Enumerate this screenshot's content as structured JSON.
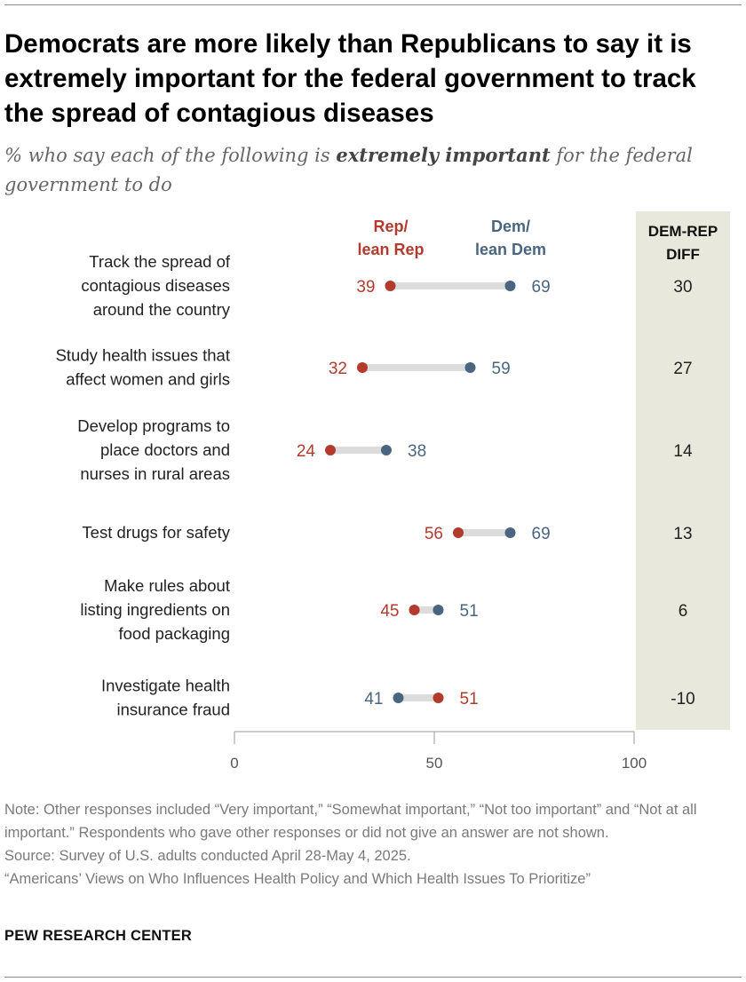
{
  "title": "Democrats are more likely than Republicans to say it is extremely important for the federal government to track the spread of contagious diseases",
  "subtitle": {
    "before": "% who say each of the following is ",
    "emphasis": "extremely important",
    "after": " for the federal government to do"
  },
  "chart_data": {
    "type": "dot",
    "series": [
      {
        "name": "Rep/ lean Rep",
        "name_lines": [
          "Rep/",
          "lean Rep"
        ],
        "color": "#b33b2e"
      },
      {
        "name": "Dem/ lean Dem",
        "name_lines": [
          "Dem/",
          "lean Dem"
        ],
        "color": "#4a6580"
      }
    ],
    "diff_header": [
      "DEM-REP",
      "DIFF"
    ],
    "rows": [
      {
        "label": [
          "Track the spread of",
          "contagious diseases",
          "around the country"
        ],
        "rep": 39,
        "dem": 69,
        "diff": "30"
      },
      {
        "label": [
          "Study health issues that",
          "affect women and girls"
        ],
        "rep": 32,
        "dem": 59,
        "diff": "27"
      },
      {
        "label": [
          "Develop programs to",
          "place doctors and",
          "nurses in rural areas"
        ],
        "rep": 24,
        "dem": 38,
        "diff": "14"
      },
      {
        "label": [
          "Test drugs for safety"
        ],
        "rep": 56,
        "dem": 69,
        "diff": "13"
      },
      {
        "label": [
          "Make rules about",
          "listing ingredients on",
          "food packaging"
        ],
        "rep": 45,
        "dem": 51,
        "diff": "6"
      },
      {
        "label": [
          "Investigate health",
          "insurance fraud"
        ],
        "rep": 51,
        "dem": 41,
        "diff": "-10"
      }
    ],
    "xlim": [
      0,
      100
    ],
    "xticks": [
      0,
      50,
      100
    ],
    "colors": {
      "diff_bg": "#e9e8dc",
      "connector": "#dcdcdc",
      "axis": "#9a9a9a"
    }
  },
  "notes": {
    "note": "Note: Other responses included “Very important,” “Somewhat important,” “Not too important” and “Not at all important.” Respondents who gave other responses or did not give an answer are not shown.",
    "source": "Source: Survey of U.S. adults conducted April 28-May 4, 2025.",
    "report": "“Americans’ Views on Who Influences Health Policy and Which Health Issues To Prioritize”"
  },
  "brand": "PEW RESEARCH CENTER"
}
